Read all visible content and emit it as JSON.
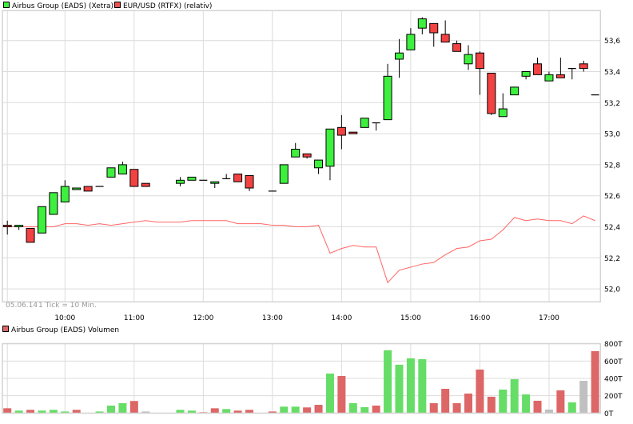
{
  "legend": {
    "main": [
      {
        "label": "Airbus Group (EADS) (Xetra)",
        "color": "#3ef03e"
      },
      {
        "label": "EUR/USD (RTFX) (relativ)",
        "color": "#f25050"
      }
    ],
    "volume": {
      "label": "Airbus Group (EADS) Volumen",
      "color": "#dd6666"
    }
  },
  "footer": {
    "date": "05.06.14",
    "tick": "1 Tick = 10 Min."
  },
  "colors": {
    "up": "#3ef03e",
    "down": "#f24242",
    "line": "#ff6464",
    "vol_up": "#66dd66",
    "vol_down": "#dd6666",
    "vol_flat": "#c0c0c0"
  },
  "chart_data": [
    {
      "type": "candlestick",
      "title": "",
      "x_tick_labels": [
        "10:00",
        "11:00",
        "12:00",
        "13:00",
        "14:00",
        "15:00",
        "16:00",
        "17:00"
      ],
      "y_tick_labels": [
        "53,6",
        "53,4",
        "53,2",
        "53,0",
        "52,8",
        "52,6",
        "52,4",
        "52,2",
        "52,0"
      ],
      "y_ticks": [
        53.6,
        53.4,
        53.2,
        53.0,
        52.8,
        52.6,
        52.4,
        52.2,
        52.0
      ],
      "ylim": [
        51.92,
        53.79
      ],
      "grid": true,
      "x_interval_minutes": 10,
      "first_time": "09:10",
      "series": [
        {
          "name": "Airbus Group (EADS) (Xetra)",
          "ohlc": [
            [
              52.41,
              52.44,
              52.35,
              52.4
            ],
            [
              52.4,
              52.41,
              52.38,
              52.41
            ],
            [
              52.39,
              52.39,
              52.3,
              52.3
            ],
            [
              52.36,
              52.53,
              52.36,
              52.53
            ],
            [
              52.48,
              52.62,
              52.48,
              52.62
            ],
            [
              52.56,
              52.7,
              52.56,
              52.66
            ],
            [
              52.64,
              52.65,
              52.64,
              52.65
            ],
            [
              52.66,
              52.66,
              52.63,
              52.63
            ],
            [
              52.66,
              52.66,
              52.66,
              52.66
            ],
            [
              52.72,
              52.78,
              52.72,
              52.78
            ],
            [
              52.74,
              52.82,
              52.74,
              52.8
            ],
            [
              52.77,
              52.77,
              52.66,
              52.66
            ],
            [
              52.68,
              52.68,
              52.66,
              52.66
            ],
            null,
            null,
            [
              52.68,
              52.72,
              52.66,
              52.7
            ],
            [
              52.7,
              52.72,
              52.7,
              52.72
            ],
            [
              52.7,
              52.7,
              52.7,
              52.7
            ],
            [
              52.68,
              52.69,
              52.65,
              52.69
            ],
            [
              52.71,
              52.74,
              52.71,
              52.71
            ],
            [
              52.74,
              52.74,
              52.69,
              52.69
            ],
            [
              52.73,
              52.73,
              52.63,
              52.65
            ],
            null,
            [
              52.63,
              52.63,
              52.63,
              52.63
            ],
            [
              52.68,
              52.8,
              52.68,
              52.8
            ],
            [
              52.85,
              52.94,
              52.85,
              52.9
            ],
            [
              52.87,
              52.87,
              52.84,
              52.85
            ],
            [
              52.78,
              52.83,
              52.74,
              52.83
            ],
            [
              52.79,
              53.03,
              52.7,
              53.03
            ],
            [
              53.04,
              53.12,
              52.9,
              52.99
            ],
            [
              53.01,
              53.01,
              53.0,
              53.0
            ],
            [
              53.04,
              53.1,
              53.04,
              53.1
            ],
            [
              53.07,
              53.07,
              53.02,
              53.07
            ],
            [
              53.09,
              53.45,
              53.09,
              53.37
            ],
            [
              53.48,
              53.61,
              53.36,
              53.52
            ],
            [
              53.54,
              53.68,
              53.54,
              53.64
            ],
            [
              53.68,
              53.75,
              53.64,
              53.74
            ],
            [
              53.71,
              53.71,
              53.56,
              53.65
            ],
            [
              53.64,
              53.73,
              53.59,
              53.59
            ],
            [
              53.58,
              53.6,
              53.53,
              53.53
            ],
            [
              53.45,
              53.57,
              53.41,
              53.51
            ],
            [
              53.52,
              53.53,
              53.25,
              53.42
            ],
            [
              53.39,
              53.39,
              53.12,
              53.13
            ],
            [
              53.11,
              53.26,
              53.11,
              53.16
            ],
            [
              53.25,
              53.3,
              53.25,
              53.3
            ],
            [
              53.37,
              53.4,
              53.35,
              53.4
            ],
            [
              53.45,
              53.49,
              53.38,
              53.38
            ],
            [
              53.34,
              53.4,
              53.34,
              53.38
            ],
            [
              53.38,
              53.49,
              53.36,
              53.36
            ],
            [
              53.42,
              53.42,
              53.35,
              53.42
            ],
            [
              53.45,
              53.47,
              53.4,
              53.42
            ],
            [
              53.25,
              53.25,
              53.25,
              53.25
            ]
          ]
        },
        {
          "name": "EUR/USD (RTFX) (relativ)",
          "type": "line",
          "values": [
            52.4,
            52.4,
            52.4,
            52.4,
            52.4,
            52.42,
            52.42,
            52.41,
            52.42,
            52.41,
            52.42,
            52.43,
            52.44,
            52.43,
            52.43,
            52.43,
            52.44,
            52.44,
            52.44,
            52.44,
            52.42,
            52.42,
            52.42,
            52.41,
            52.41,
            52.4,
            52.4,
            52.41,
            52.23,
            52.26,
            52.28,
            52.27,
            52.27,
            52.04,
            52.12,
            52.14,
            52.16,
            52.17,
            52.22,
            52.26,
            52.27,
            52.31,
            52.32,
            52.38,
            52.46,
            52.44,
            52.45,
            52.44,
            52.44,
            52.42,
            52.47,
            52.44
          ]
        }
      ]
    },
    {
      "type": "bar",
      "title": "Airbus Group (EADS) Volumen",
      "y_tick_labels": [
        "800T",
        "600T",
        "400T",
        "200T",
        "0T"
      ],
      "y_ticks": [
        800,
        600,
        400,
        200,
        0
      ],
      "ylim": [
        0,
        800
      ],
      "unit": "T",
      "grid": true,
      "values": [
        55,
        28,
        37,
        28,
        37,
        18,
        37,
        0,
        18,
        86,
        114,
        139,
        18,
        0,
        0,
        37,
        28,
        9,
        55,
        46,
        28,
        37,
        0,
        18,
        74,
        74,
        65,
        95,
        456,
        428,
        114,
        68,
        86,
        725,
        558,
        632,
        622,
        114,
        280,
        114,
        225,
        502,
        188,
        271,
        391,
        215,
        142,
        40,
        262,
        123,
        372,
        715
      ],
      "direction": [
        "down",
        "up",
        "down",
        "up",
        "up",
        "up",
        "down",
        "none",
        "up",
        "up",
        "up",
        "down",
        "flat",
        "none",
        "none",
        "up",
        "up",
        "down",
        "down",
        "up",
        "down",
        "down",
        "none",
        "down",
        "up",
        "up",
        "down",
        "down",
        "up",
        "down",
        "up",
        "up",
        "down",
        "up",
        "up",
        "up",
        "up",
        "down",
        "down",
        "down",
        "down",
        "down",
        "down",
        "up",
        "up",
        "up",
        "down",
        "flat",
        "down",
        "up",
        "flat",
        "down"
      ]
    }
  ]
}
